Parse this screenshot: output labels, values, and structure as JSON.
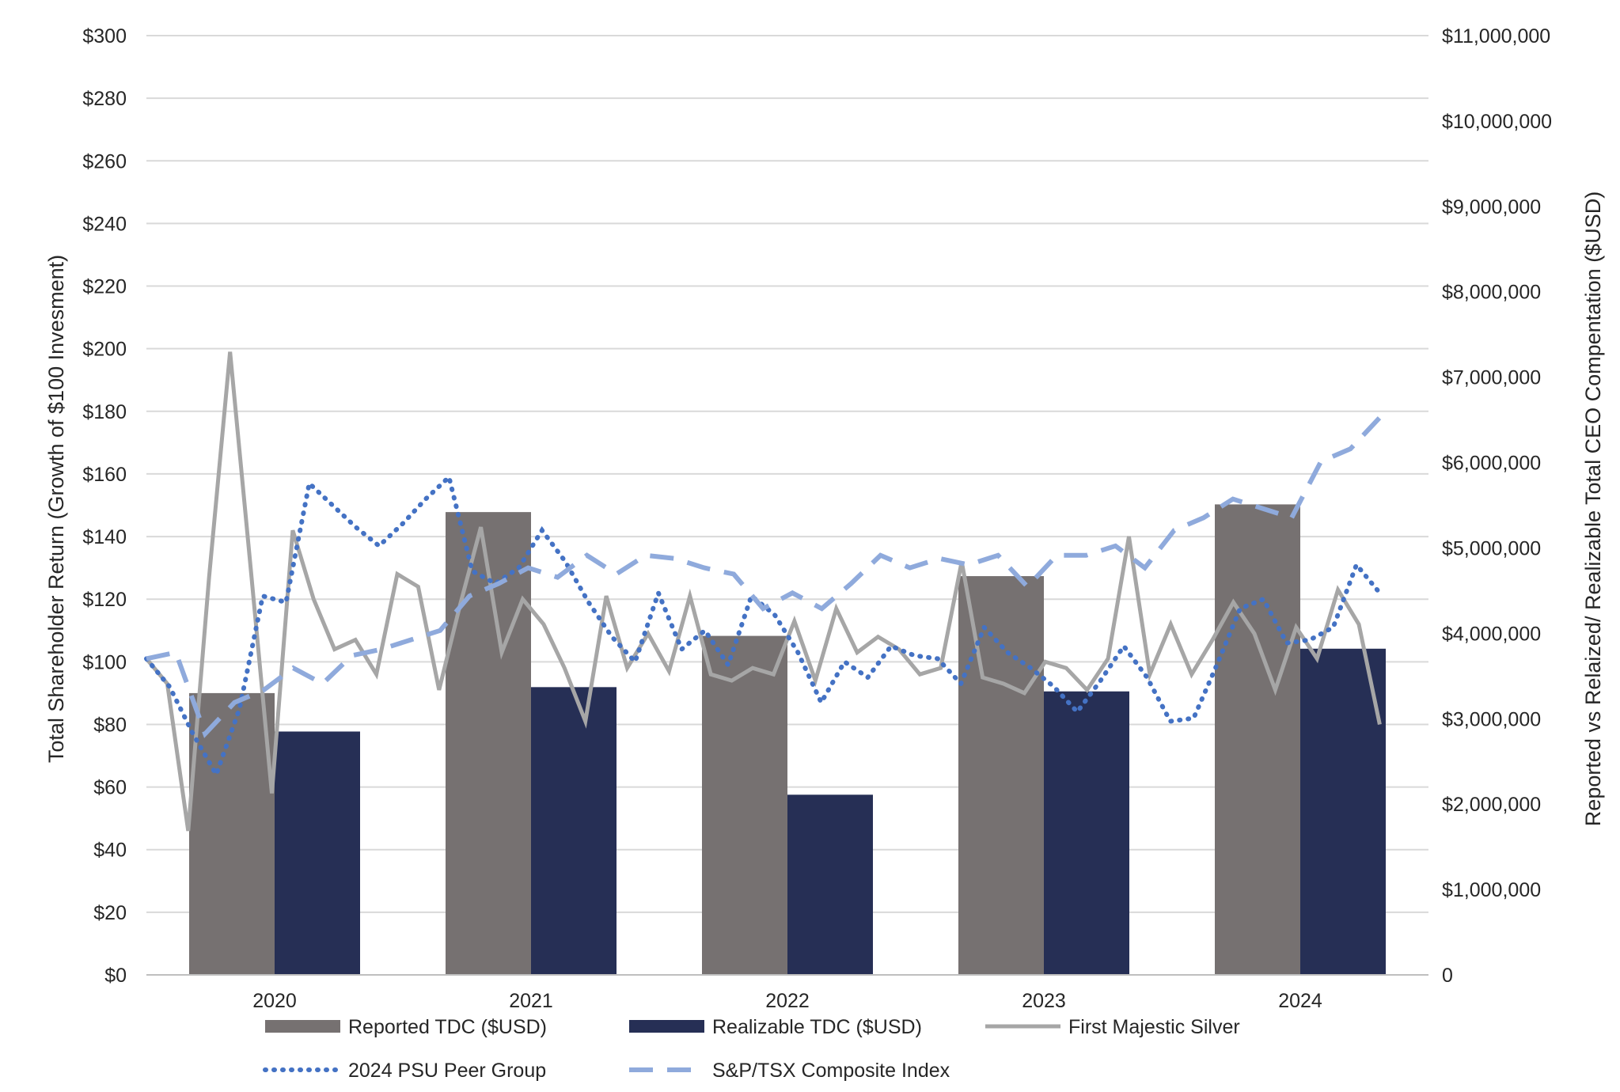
{
  "chart_data": {
    "type": "bar",
    "title": "",
    "categories": [
      "2020",
      "2021",
      "2022",
      "2023",
      "2024"
    ],
    "ylabel": "Total Shareholder Return (Growth of $100 Invesment)",
    "y2label": "Reported vs Relaized/ Realizable Total CEO Compentation ($USD)",
    "ylim": [
      0,
      300
    ],
    "y2lim": [
      0,
      11000000
    ],
    "y_ticks": [
      "$0",
      "$20",
      "$40",
      "$60",
      "$80",
      "$100",
      "$120",
      "$140",
      "$160",
      "$180",
      "$200",
      "$220",
      "$240",
      "$260",
      "$280",
      "$300"
    ],
    "y2_ticks": [
      "0",
      "$1,000,000",
      "$2,000,000",
      "$3,000,000",
      "$4,000,000",
      "$5,000,000",
      "$6,000,000",
      "$7,000,000",
      "$8,000,000",
      "$9,000,000",
      "$10,000,000",
      "$11,000,000"
    ],
    "grid": true,
    "legend_position": "bottom",
    "bar_series": [
      {
        "name": "Reported TDC ($USD)",
        "color": "#767171",
        "values": [
          3300000,
          5420000,
          3970000,
          4670000,
          5510000
        ]
      },
      {
        "name": "Realizable TDC ($USD)",
        "color": "#262f55",
        "values": [
          2850000,
          3370000,
          2110000,
          3320000,
          3820000
        ]
      }
    ],
    "line_series": [
      {
        "name": "First Majestic Silver",
        "color": "#a6a6a6",
        "style": "solid",
        "values": [
          101,
          93,
          46,
          127,
          199,
          129,
          58,
          142,
          120,
          104,
          107,
          96,
          128,
          124,
          91,
          118,
          143,
          103,
          120,
          112,
          98,
          81,
          121,
          98,
          109,
          97,
          121,
          96,
          94,
          98,
          96,
          113,
          94,
          117,
          103,
          108,
          104,
          96,
          98,
          132,
          95,
          93,
          90,
          100,
          98,
          91,
          101,
          140,
          96,
          112,
          96,
          107,
          119,
          109,
          91,
          111,
          101,
          123,
          112,
          80
        ],
        "x_start": -0.5,
        "x_end": 4.31
      },
      {
        "name": "2024 PSU Peer Group",
        "color": "#4472c4",
        "style": "dotted",
        "values": [
          101,
          92,
          77,
          64,
          85,
          121,
          119,
          157,
          150,
          143,
          137,
          144,
          152,
          159,
          129,
          125,
          130,
          142,
          132,
          119,
          108,
          100,
          122,
          104,
          110,
          99,
          121,
          115,
          103,
          87,
          100,
          95,
          105,
          102,
          101,
          93,
          111,
          103,
          98,
          92,
          84,
          94,
          105,
          95,
          81,
          82,
          99,
          117,
          120,
          106,
          107,
          111,
          131,
          122
        ],
        "x_start": -0.5,
        "x_end": 4.31
      },
      {
        "name": "S&P/TSX Composite Index",
        "color": "#8faadc",
        "style": "dashed",
        "values": [
          101,
          103,
          77,
          87,
          91,
          98,
          93,
          102,
          104,
          107,
          110,
          121,
          125,
          130,
          127,
          134,
          128,
          134,
          133,
          130,
          128,
          117,
          122,
          117,
          125,
          134,
          130,
          133,
          131,
          134,
          124,
          134,
          134,
          137,
          130,
          142,
          146,
          152,
          149,
          146,
          164,
          168,
          178
        ],
        "x_start": -0.5,
        "x_end": 4.31
      }
    ]
  },
  "legend": [
    {
      "label": "Reported TDC ($USD)",
      "swatch": "bar",
      "color": "#767171"
    },
    {
      "label": "Realizable TDC ($USD)",
      "swatch": "bar",
      "color": "#262f55"
    },
    {
      "label": "First Majestic Silver",
      "swatch": "solid",
      "color": "#a6a6a6"
    },
    {
      "label": "2024 PSU Peer Group",
      "swatch": "dotted",
      "color": "#4472c4"
    },
    {
      "label": "S&P/TSX Composite Index",
      "swatch": "dashed",
      "color": "#8faadc"
    }
  ]
}
